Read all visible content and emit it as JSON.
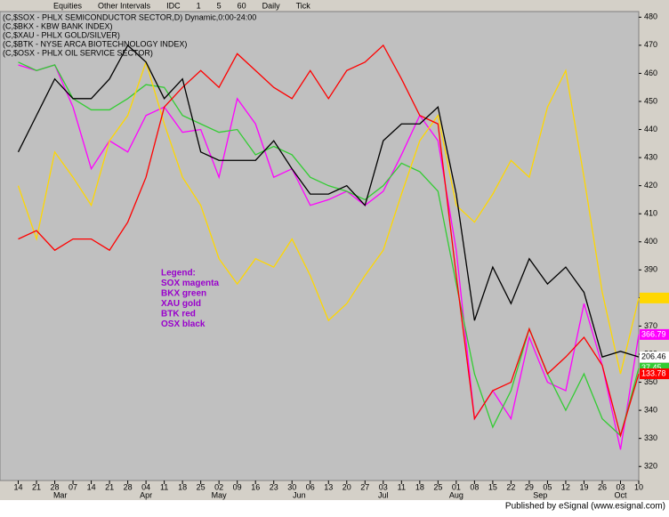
{
  "toolbar": {
    "items": [
      "Equities",
      "Other Intervals",
      "IDC",
      "1",
      "5",
      "60",
      "Daily",
      "Tick"
    ]
  },
  "footer": "Published by eSignal (www.esignal.com)",
  "chart_data": {
    "type": "line",
    "header_lines": [
      "(C,$SOX - PHLX SEMICONDUCTOR SECTOR,D) Dynamic,0:00-24:00",
      "(C,$BKX - KBW BANK INDEX)",
      "(C,$XAU - PHLX GOLD/SILVER)",
      "(C,$BTK - NYSE ARCA BIOTECHNOLOGY INDEX)",
      "(C,$OSX - PHLX OIL SERVICE SECTOR)"
    ],
    "annotation_lines": [
      "Legend:",
      "SOX magenta",
      "BKX green",
      "XAU gold",
      "BTK red",
      "OSX black"
    ],
    "x": [
      0,
      1,
      2,
      3,
      4,
      5,
      6,
      7,
      8,
      9,
      10,
      11,
      12,
      13,
      14,
      15,
      16,
      17,
      18,
      19,
      20,
      21,
      22,
      23,
      24,
      25,
      26,
      27,
      28,
      29,
      30,
      31,
      32,
      33,
      34
    ],
    "xlim": [
      -1,
      34
    ],
    "xticks": [
      {
        "value": 0,
        "label": "14"
      },
      {
        "value": 1,
        "label": "21"
      },
      {
        "value": 2,
        "label": "28"
      },
      {
        "value": 3,
        "label": "07"
      },
      {
        "value": 4,
        "label": "14"
      },
      {
        "value": 5,
        "label": "21"
      },
      {
        "value": 6,
        "label": "28"
      },
      {
        "value": 7,
        "label": "04"
      },
      {
        "value": 8,
        "label": "11"
      },
      {
        "value": 9,
        "label": "18"
      },
      {
        "value": 10,
        "label": "25"
      },
      {
        "value": 11,
        "label": "02"
      },
      {
        "value": 12,
        "label": "09"
      },
      {
        "value": 13,
        "label": "16"
      },
      {
        "value": 14,
        "label": "23"
      },
      {
        "value": 15,
        "label": "30"
      },
      {
        "value": 16,
        "label": "06"
      },
      {
        "value": 17,
        "label": "13"
      },
      {
        "value": 18,
        "label": "20"
      },
      {
        "value": 19,
        "label": "27"
      },
      {
        "value": 20,
        "label": "03"
      },
      {
        "value": 21,
        "label": "11"
      },
      {
        "value": 22,
        "label": "18"
      },
      {
        "value": 23,
        "label": "25"
      },
      {
        "value": 24,
        "label": "01"
      },
      {
        "value": 25,
        "label": "08"
      },
      {
        "value": 26,
        "label": "15"
      },
      {
        "value": 27,
        "label": "22"
      },
      {
        "value": 28,
        "label": "29"
      },
      {
        "value": 29,
        "label": "05"
      },
      {
        "value": 30,
        "label": "12"
      },
      {
        "value": 31,
        "label": "19"
      },
      {
        "value": 32,
        "label": "26"
      },
      {
        "value": 33,
        "label": "03"
      },
      {
        "value": 34,
        "label": "10"
      }
    ],
    "xticks_month": [
      {
        "value": 2.3,
        "label": "Mar"
      },
      {
        "value": 7,
        "label": "Apr"
      },
      {
        "value": 11,
        "label": "May"
      },
      {
        "value": 15.4,
        "label": "Jun"
      },
      {
        "value": 20,
        "label": "Jul"
      },
      {
        "value": 24,
        "label": "Aug"
      },
      {
        "value": 28.6,
        "label": "Sep"
      },
      {
        "value": 33,
        "label": "Oct"
      }
    ],
    "ylim": [
      315,
      482
    ],
    "yticks": [
      320,
      330,
      340,
      350,
      360,
      370,
      380,
      390,
      400,
      410,
      420,
      430,
      440,
      450,
      460,
      470,
      480
    ],
    "grid": false,
    "series": [
      {
        "color": "#ff00ff",
        "label_color": "#ffffff",
        "last_label": "366.79",
        "values": [
          463,
          461,
          463,
          448,
          426,
          436,
          432,
          445,
          448,
          439,
          440,
          423,
          451,
          442,
          423,
          426,
          413,
          415,
          418,
          413,
          418,
          431,
          445,
          436,
          397,
          337,
          347,
          337,
          366,
          350,
          347,
          378,
          356,
          326,
          367
        ]
      },
      {
        "color": "#33cc33",
        "label_color": "#ffffff",
        "last_label": "37.45",
        "values": [
          464,
          461,
          463,
          451,
          447,
          447,
          451,
          456,
          455,
          445,
          442,
          439,
          440,
          431,
          434,
          431,
          423,
          420,
          418,
          415,
          420,
          428,
          425,
          418,
          385,
          353,
          334,
          347,
          369,
          353,
          340,
          353,
          337,
          331,
          355
        ]
      },
      {
        "color": "#ffd700",
        "label_color": "#ffffff",
        "values": [
          420,
          401,
          432,
          423,
          413,
          436,
          445,
          464,
          442,
          423,
          413,
          394,
          385,
          394,
          391,
          401,
          388,
          372,
          378,
          388,
          397,
          417,
          436,
          445,
          413,
          407,
          417,
          429,
          423,
          448,
          461,
          423,
          382,
          353,
          380
        ]
      },
      {
        "color": "#ff0000",
        "label_color": "#ffffff",
        "last_label": "133.78",
        "values": [
          401,
          404,
          397,
          401,
          401,
          397,
          407,
          423,
          448,
          455,
          461,
          455,
          467,
          461,
          455,
          451,
          461,
          451,
          461,
          464,
          470,
          458,
          445,
          442,
          388,
          337,
          347,
          350,
          369,
          353,
          359,
          366,
          356,
          331,
          353
        ]
      },
      {
        "color": "#000000",
        "label_color": "#000000",
        "box_color": "#ffffff",
        "last_label": "206.46",
        "values": [
          432,
          445,
          458,
          451,
          451,
          458,
          470,
          464,
          451,
          458,
          432,
          429,
          429,
          429,
          436,
          426,
          417,
          417,
          420,
          413,
          436,
          442,
          442,
          448,
          417,
          372,
          391,
          378,
          394,
          385,
          391,
          382,
          359,
          361,
          359
        ]
      }
    ]
  }
}
